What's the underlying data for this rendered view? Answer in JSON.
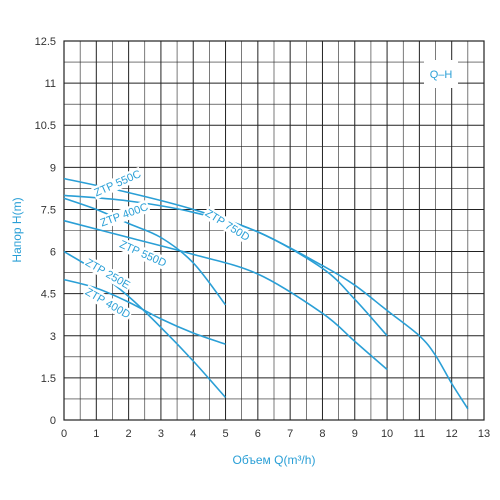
{
  "chart_data": {
    "type": "line",
    "legend_box": "Q–H",
    "xlabel": "Объем Q(m³/h)",
    "ylabel": "Напор H(m)",
    "xlim": [
      0,
      13
    ],
    "ylim": [
      0,
      12.5
    ],
    "x_ticks": [
      "0",
      "1",
      "2",
      "3",
      "4",
      "5",
      "6",
      "7",
      "8",
      "9",
      "10",
      "11",
      "12",
      "13"
    ],
    "y_ticks": [
      "0",
      "1.5",
      "3",
      "4.5",
      "6",
      "7.5",
      "9",
      "10.5",
      "11",
      "12.5"
    ],
    "grid": true,
    "line_color": "#2a9fd6",
    "series": [
      {
        "name": "ZTP 550C",
        "x": [
          0,
          2,
          4,
          6,
          8,
          9,
          10,
          11,
          11.5,
          12,
          12.5
        ],
        "y": [
          8.6,
          8.1,
          7.5,
          6.7,
          5.5,
          4.8,
          3.9,
          3.0,
          2.3,
          1.3,
          0.4
        ]
      },
      {
        "name": "ZTP 750D",
        "x": [
          0,
          2,
          4,
          6,
          8,
          9,
          10
        ],
        "y": [
          8.0,
          7.8,
          7.4,
          6.7,
          5.4,
          4.3,
          3.0
        ]
      },
      {
        "name": "ZTP 400C",
        "x": [
          0,
          1,
          2,
          3,
          4,
          5
        ],
        "y": [
          7.9,
          7.5,
          7.0,
          6.5,
          5.6,
          4.1
        ]
      },
      {
        "name": "ZTP 550D",
        "x": [
          0,
          2,
          4,
          6,
          8,
          9,
          10
        ],
        "y": [
          7.1,
          6.5,
          5.9,
          5.2,
          3.8,
          2.8,
          1.8
        ]
      },
      {
        "name": "ZTP 250E",
        "x": [
          0,
          1,
          2,
          3,
          4,
          5
        ],
        "y": [
          6.0,
          5.3,
          4.4,
          3.3,
          2.1,
          0.8
        ]
      },
      {
        "name": "ZTP 400D",
        "x": [
          0,
          1,
          2,
          3,
          4,
          5
        ],
        "y": [
          5.0,
          4.7,
          4.2,
          3.6,
          3.1,
          2.7
        ]
      }
    ]
  }
}
